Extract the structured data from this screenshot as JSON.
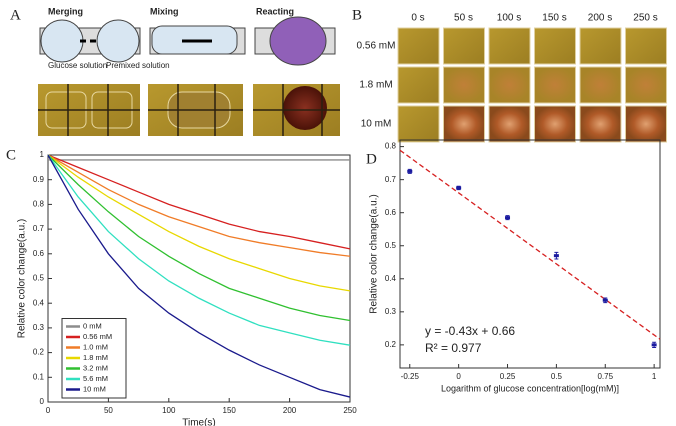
{
  "panel_labels": [
    "A",
    "B",
    "C",
    "D"
  ],
  "panel_a": {
    "steps": [
      "Merging",
      "Mixing",
      "Reacting"
    ],
    "labels": [
      "Glucose solution",
      "Premixed solution"
    ]
  },
  "panel_b": {
    "times": [
      "0 s",
      "50 s",
      "100 s",
      "150 s",
      "200 s",
      "250 s"
    ],
    "concentrations": [
      "0.56 mM",
      "1.8 mM",
      "10 mM"
    ]
  },
  "chart_data": [
    {
      "type": "line",
      "xlabel": "Time(s)",
      "ylabel": "Relative color change(a.u.)",
      "x": [
        0,
        25,
        50,
        75,
        100,
        125,
        150,
        175,
        200,
        225,
        250
      ],
      "xlim": [
        0,
        250
      ],
      "xticks": [
        0,
        50,
        100,
        150,
        200,
        250
      ],
      "ylim": [
        0,
        1
      ],
      "yticks": [
        0,
        0.1,
        0.2,
        0.3,
        0.4,
        0.5,
        0.6,
        0.7,
        0.8,
        0.9,
        1
      ],
      "legend": "lower left",
      "series": [
        {
          "name": "0 mM",
          "color": "#8c8c8c",
          "values": [
            0.98,
            0.98,
            0.98,
            0.98,
            0.98,
            0.98,
            0.98,
            0.98,
            0.98,
            0.98,
            0.98
          ]
        },
        {
          "name": "0.56 mM",
          "color": "#d62020",
          "values": [
            1,
            0.95,
            0.9,
            0.85,
            0.8,
            0.76,
            0.72,
            0.69,
            0.67,
            0.645,
            0.62
          ]
        },
        {
          "name": "1.0 mM",
          "color": "#f07c28",
          "values": [
            1,
            0.93,
            0.86,
            0.8,
            0.75,
            0.71,
            0.67,
            0.645,
            0.625,
            0.605,
            0.59
          ]
        },
        {
          "name": "1.8 mM",
          "color": "#e8d800",
          "values": [
            1,
            0.91,
            0.83,
            0.76,
            0.69,
            0.63,
            0.58,
            0.54,
            0.5,
            0.47,
            0.45
          ]
        },
        {
          "name": "3.2 mM",
          "color": "#30c030",
          "values": [
            1,
            0.88,
            0.77,
            0.67,
            0.59,
            0.52,
            0.46,
            0.42,
            0.38,
            0.35,
            0.33
          ]
        },
        {
          "name": "5.6 mM",
          "color": "#30e0c0",
          "values": [
            1,
            0.83,
            0.69,
            0.58,
            0.49,
            0.42,
            0.36,
            0.31,
            0.28,
            0.25,
            0.23
          ]
        },
        {
          "name": "10 mM",
          "color": "#1a1a8c",
          "values": [
            1,
            0.78,
            0.6,
            0.46,
            0.36,
            0.28,
            0.21,
            0.15,
            0.1,
            0.05,
            0.02
          ]
        }
      ]
    },
    {
      "type": "scatter",
      "xlabel": "Logarithm of glucose concentration[log(mM)]",
      "ylabel": "Relative color change(a.u.)",
      "x": [
        -0.25,
        0,
        0.25,
        0.5,
        0.75,
        1
      ],
      "values": [
        0.725,
        0.675,
        0.585,
        0.47,
        0.335,
        0.2
      ],
      "errors": [
        0.006,
        0.005,
        0.006,
        0.01,
        0.007,
        0.008
      ],
      "color": "#1a1aa0",
      "xlim": [
        -0.3,
        1.03
      ],
      "xticks": [
        -0.25,
        0,
        0.25,
        0.5,
        0.75,
        1
      ],
      "ylim": [
        0.13,
        0.82
      ],
      "yticks": [
        0.2,
        0.3,
        0.4,
        0.5,
        0.6,
        0.7,
        0.8
      ],
      "fit_line": {
        "slope": -0.43,
        "intercept": 0.66,
        "color": "#d62020"
      },
      "annotations": [
        "y = -0.43x + 0.66",
        "R² = 0.977"
      ]
    }
  ]
}
